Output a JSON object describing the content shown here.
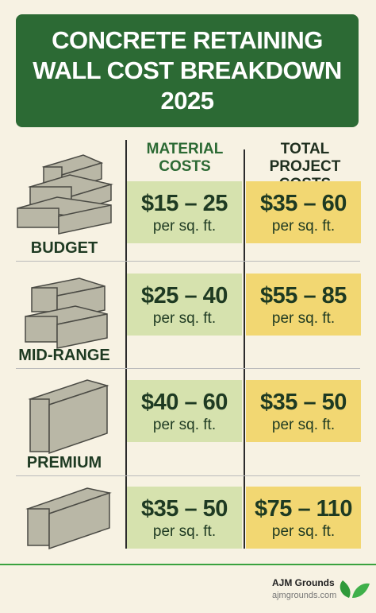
{
  "header": {
    "title_lines": [
      "CONCRETE RETAINING",
      "WALL COST BREAKDOWN",
      "2025"
    ]
  },
  "table": {
    "columns": [
      "MATERIAL COSTS",
      "TOTAL PROJECT COSTS"
    ],
    "rows": [
      {
        "label": "BUDGET",
        "material": {
          "price": "$15 – 25",
          "unit": "per sq. ft."
        },
        "total": {
          "price": "$35 – 60",
          "unit": "per sq. ft."
        }
      },
      {
        "label": "MID-RANGE",
        "material": {
          "price": "$25 – 40",
          "unit": "per sq. ft."
        },
        "total": {
          "price": "$55 – 85",
          "unit": "per sq. ft."
        }
      },
      {
        "label": "PREMIUM",
        "material": {
          "price": "$40 – 60",
          "unit": "per sq. ft."
        },
        "total": {
          "price": "$35 – 50",
          "unit": "per sq. ft."
        }
      },
      {
        "material": {
          "price": "$35 – 50",
          "unit": "per sq. ft."
        },
        "total": {
          "price": "$75 – 110",
          "unit": "per sq. ft."
        }
      }
    ]
  },
  "footer": {
    "brand": "AJM Grounds",
    "url": "ajmgrounds.com"
  }
}
